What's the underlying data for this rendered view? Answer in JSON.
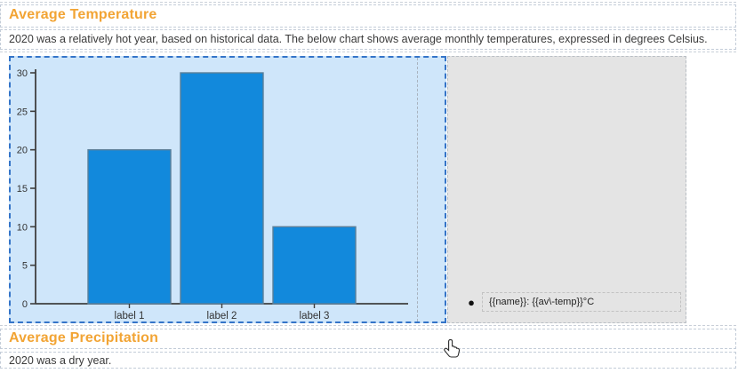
{
  "sections": {
    "temperature": {
      "heading": "Average Temperature",
      "paragraph": "2020 was a relatively hot year, based on historical data. The below chart shows average monthly temperatures, expressed in degrees Celsius."
    },
    "precipitation": {
      "heading": "Average Precipitation",
      "paragraph": "2020 was a dry year."
    }
  },
  "chart_data": {
    "type": "bar",
    "categories": [
      "label 1",
      "label 2",
      "label 3"
    ],
    "values": [
      20,
      30,
      10
    ],
    "title": "",
    "xlabel": "",
    "ylabel": "",
    "ylim": [
      0,
      30
    ],
    "yticks": [
      0,
      5,
      10,
      15,
      20,
      25,
      30
    ],
    "grid": false,
    "legend": {
      "marker": "●",
      "label": "{{name}}: {{av\\-temp}}°C",
      "position": "right-bottom"
    }
  },
  "colors": {
    "heading": "#f2a434",
    "body_text": "#3a3a3a",
    "bar_fill": "#1289dc",
    "bar_stroke": "#5b7f99",
    "plot_bg": "#cfe6fa",
    "plot_border": "#3474c8",
    "legend_bg": "#e4e4e4",
    "axis": "#3f3f3f",
    "tick_text": "#333333"
  },
  "cursor": {
    "type": "pointer-hand"
  }
}
